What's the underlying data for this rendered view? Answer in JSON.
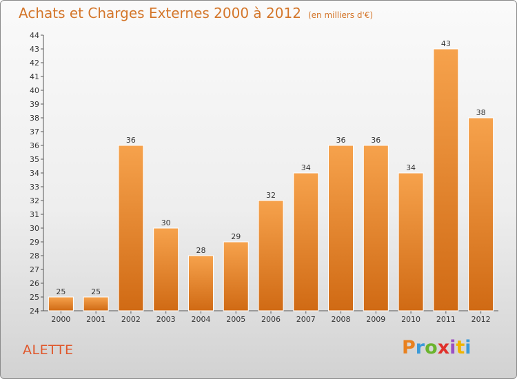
{
  "header": {
    "title": "Achats et Charges Externes 2000 à 2012",
    "unit": "(en milliers d'€)"
  },
  "footer": {
    "commune": "ALETTE",
    "logo_text": "Proxiti",
    "logo_colors": [
      "#e8811f",
      "#3a9ad9",
      "#6ab42d",
      "#e0312b",
      "#9b4fc4",
      "#f0b400",
      "#3a9ad9"
    ]
  },
  "colors": {
    "bar_light": "#f6a24c",
    "bar_dark": "#d06a14",
    "title": "#d4762a",
    "commune": "#e0562a"
  },
  "chart_data": {
    "type": "bar",
    "title": "Achats et Charges Externes 2000 à 2012",
    "subtitle": "(en milliers d'€)",
    "xlabel": "",
    "ylabel": "",
    "categories": [
      "2000",
      "2001",
      "2002",
      "2003",
      "2004",
      "2005",
      "2006",
      "2007",
      "2008",
      "2009",
      "2010",
      "2011",
      "2012"
    ],
    "values": [
      25,
      25,
      36,
      30,
      28,
      29,
      32,
      34,
      36,
      36,
      34,
      43,
      38
    ],
    "ylim": [
      24,
      44
    ],
    "yticks": [
      24,
      25,
      26,
      27,
      28,
      29,
      30,
      31,
      32,
      33,
      34,
      35,
      36,
      37,
      38,
      39,
      40,
      41,
      42,
      43,
      44
    ],
    "grid": false,
    "legend": "none"
  }
}
